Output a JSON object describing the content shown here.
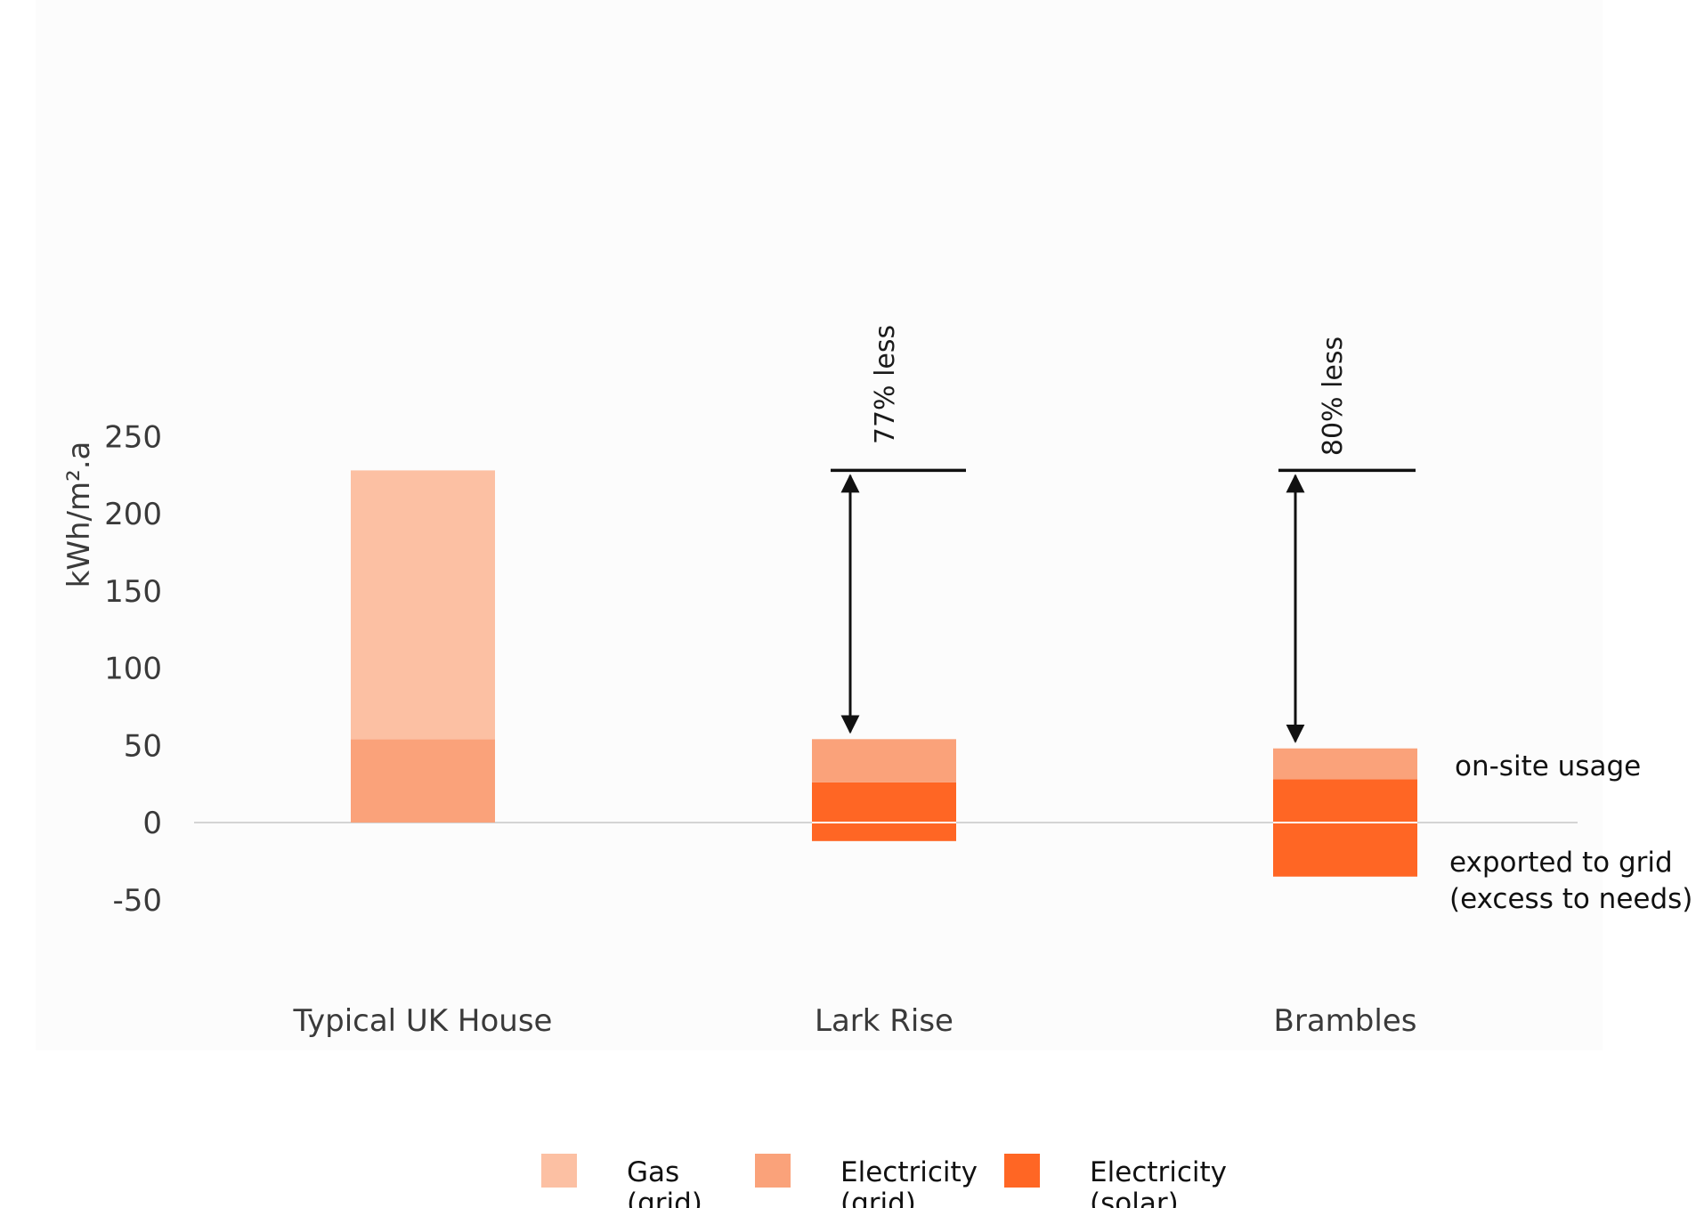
{
  "chart_data": {
    "type": "bar",
    "stacked": true,
    "ylabel": "kWh/m².a",
    "ylim": [
      -50,
      250
    ],
    "yticks": [
      250,
      200,
      150,
      100,
      50,
      0,
      -50
    ],
    "categories": [
      "Typical UK House",
      "Lark Rise",
      "Brambles"
    ],
    "series": [
      {
        "name": "Electricity (solar)",
        "color": "#FF6624",
        "values": [
          0,
          26,
          28
        ],
        "negative_values": [
          0,
          -12,
          -35
        ]
      },
      {
        "name": "Electricity (grid)",
        "color": "#FAA27A",
        "values": [
          54,
          28,
          20
        ]
      },
      {
        "name": "Gas (grid)",
        "color": "#FCC0A3",
        "values": [
          174,
          0,
          0
        ]
      }
    ],
    "legend": {
      "position": "bottom",
      "items": [
        {
          "line1": "Gas",
          "line2": "(grid)",
          "color": "#FCC0A3"
        },
        {
          "line1": "Electricity",
          "line2": "(grid)",
          "color": "#FAA27A"
        },
        {
          "line1": "Electricity",
          "line2": "(solar)",
          "color": "#FF6624"
        }
      ]
    },
    "annotations": [
      {
        "category": "Lark Rise",
        "text": "77% less",
        "from": 228,
        "to": 54
      },
      {
        "category": "Brambles",
        "text": "80% less",
        "from": 228,
        "to": 48
      }
    ],
    "side_labels": {
      "on_site": "on-site usage",
      "exported_line1": "exported to grid",
      "exported_line2": "(excess to needs)"
    },
    "grid": false
  }
}
